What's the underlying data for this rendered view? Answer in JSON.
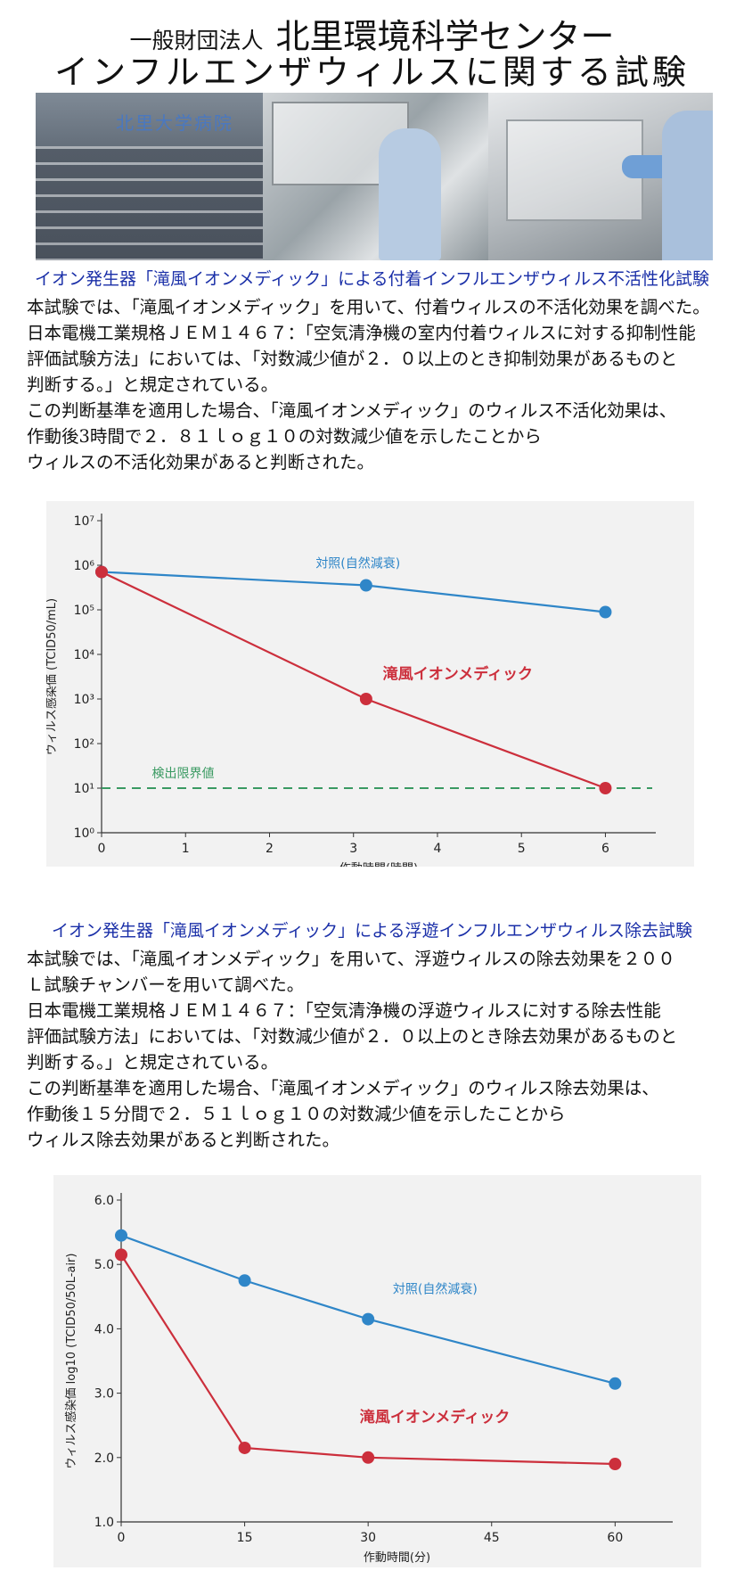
{
  "header": {
    "org_prefix": "一般財団法人",
    "org_name": "北里環境科学センター",
    "title": "インフルエンザウィルスに関する試験"
  },
  "section1": {
    "heading": "イオン発生器「滝風イオンメディック」による付着インフルエンザウィルス不活性化試験",
    "lines": [
      "本試験では、「滝風イオンメディック」を用いて、付着ウィルスの不活化効果を調べた。",
      "日本電機工業規格ＪＥＭ１４６７：「空気清浄機の室内付着ウィルスに対する抑制性能",
      "評価試験方法」においては、「対数減少値が２．０以上のとき抑制効果があるものと",
      "判断する。」と規定されている。",
      "この判断基準を適用した場合、「滝風イオンメディック」のウィルス不活化効果は、",
      "作動後3時間で２．８１ｌｏｇ１０の対数減少値を示したことから",
      "ウィルスの不活化効果があると判断された。"
    ]
  },
  "section2": {
    "heading": "イオン発生器「滝風イオンメディック」による浮遊インフルエンザウィルス除去試験",
    "lines": [
      "本試験では、「滝風イオンメディック」を用いて、浮遊ウィルスの除去効果を２００",
      "Ｌ試験チャンバーを用いて調べた。",
      "日本電機工業規格ＪＥＭ１４６７：「空気清浄機の浮遊ウィルスに対する除去性能",
      "評価試験方法」においては、「対数減少値が２．０以上のとき除去効果があるものと",
      "判断する。」と規定されている。",
      "この判断基準を適用した場合、「滝風イオンメディック」のウィルス除去効果は、",
      "作動後１５分間で２．５１ｌｏｇ１０の対数減少値を示したことから",
      "ウィルス除去効果があると判断された。"
    ]
  },
  "colors": {
    "control": "#2f86c8",
    "device": "#cc2f3c",
    "limit": "#3a9a62",
    "heading": "#1a2fa8"
  },
  "chart_data": [
    {
      "type": "line",
      "xlabel": "作動時間(時間)",
      "ylabel": "ウィルス感染価 (TCID50/mL)",
      "x_ticks": [
        0,
        1,
        2,
        3,
        4,
        5,
        6
      ],
      "y_tick_labels": [
        "10⁰",
        "10¹",
        "10²",
        "10³",
        "10⁴",
        "10⁵",
        "10⁶",
        "10⁷"
      ],
      "y_scale": "log10",
      "xlim": [
        0,
        6.6
      ],
      "ylim": [
        0,
        7
      ],
      "series": [
        {
          "name": "対照(自然減衰)",
          "x": [
            0,
            3.15,
            6
          ],
          "y": [
            5.85,
            5.55,
            4.95
          ],
          "color": "#2f86c8"
        },
        {
          "name": "滝風イオンメディック",
          "x": [
            0,
            3.15,
            6
          ],
          "y": [
            5.85,
            3.0,
            1.0
          ],
          "color": "#cc2f3c"
        }
      ],
      "reference_line": {
        "label": "検出限界値",
        "y": 1.0,
        "color": "#3a9a62",
        "style": "dashed"
      },
      "grid": false
    },
    {
      "type": "line",
      "xlabel": "作動時間(分)",
      "ylabel": "ウィルス感染価 log10 (TCID50/50L-air)",
      "x_ticks": [
        0,
        15,
        30,
        45,
        60
      ],
      "y_ticks": [
        "1.0",
        "2.0",
        "3.0",
        "4.0",
        "5.0",
        "6.0"
      ],
      "xlim": [
        0,
        67
      ],
      "ylim": [
        1.0,
        6.0
      ],
      "series": [
        {
          "name": "対照(自然減衰)",
          "x": [
            0,
            15,
            30,
            60
          ],
          "y": [
            5.45,
            4.75,
            4.15,
            3.15
          ],
          "color": "#2f86c8"
        },
        {
          "name": "滝風イオンメディック",
          "x": [
            0,
            15,
            30,
            60
          ],
          "y": [
            5.15,
            2.15,
            2.0,
            1.9
          ],
          "color": "#cc2f3c"
        }
      ],
      "grid": false
    }
  ]
}
